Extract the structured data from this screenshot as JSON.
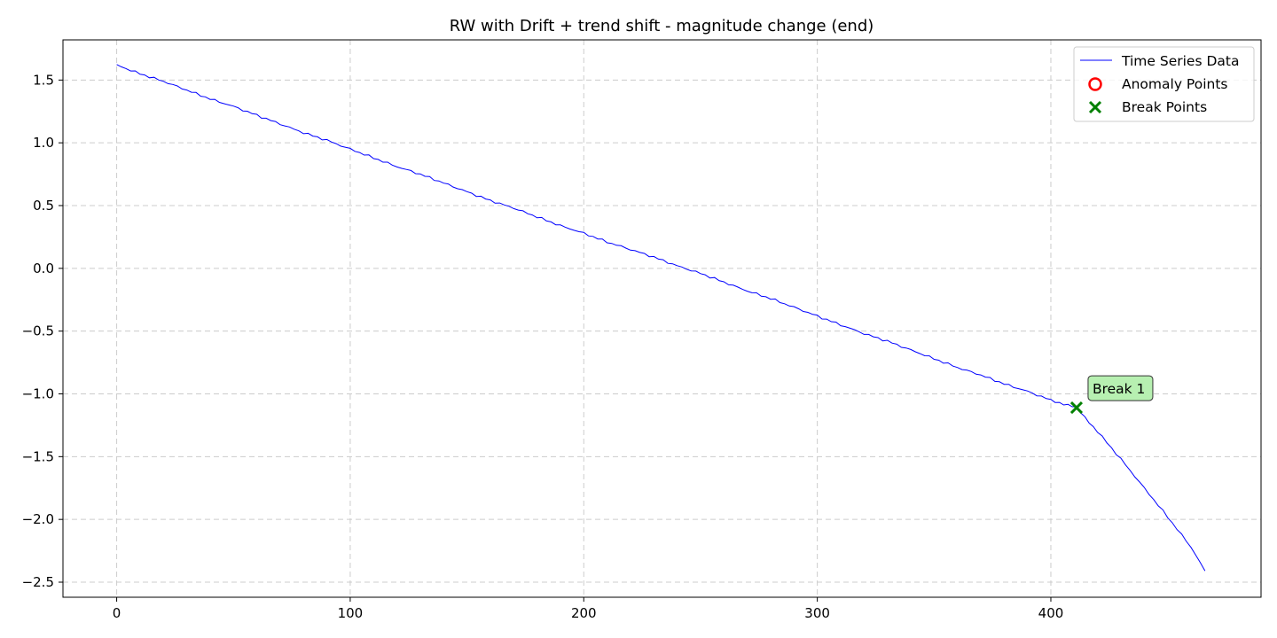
{
  "chart_data": {
    "type": "line",
    "title": "RW with Drift + trend shift - magnitude change (end)",
    "xlabel": "",
    "ylabel": "",
    "xlim": [
      -23,
      490
    ],
    "ylim": [
      -2.62,
      1.82
    ],
    "xticks": [
      0,
      100,
      200,
      300,
      400
    ],
    "xtick_labels": [
      "0",
      "100",
      "200",
      "300",
      "400"
    ],
    "yticks": [
      1.5,
      1.0,
      0.5,
      0.0,
      -0.5,
      -1.0,
      -1.5,
      -2.0,
      -2.5
    ],
    "ytick_labels": [
      "1.5",
      "1.0",
      "0.5",
      "0.0",
      "−0.5",
      "−1.0",
      "−1.5",
      "−2.0",
      "−2.5"
    ],
    "grid": true,
    "legend_position": "top-right",
    "series": [
      {
        "name": "Time Series Data",
        "color": "#0000ff",
        "x": [
          0,
          10,
          20,
          30,
          40,
          50,
          60,
          70,
          80,
          90,
          100,
          110,
          120,
          130,
          140,
          150,
          160,
          170,
          180,
          190,
          200,
          210,
          220,
          230,
          240,
          250,
          260,
          270,
          280,
          290,
          300,
          310,
          320,
          330,
          340,
          350,
          360,
          370,
          380,
          390,
          400,
          411,
          420,
          430,
          440,
          450,
          460,
          466
        ],
        "y": [
          1.62,
          1.55,
          1.49,
          1.42,
          1.35,
          1.29,
          1.22,
          1.15,
          1.08,
          1.02,
          0.95,
          0.88,
          0.81,
          0.75,
          0.68,
          0.61,
          0.54,
          0.48,
          0.41,
          0.34,
          0.28,
          0.21,
          0.15,
          0.09,
          0.02,
          -0.04,
          -0.11,
          -0.18,
          -0.24,
          -0.31,
          -0.38,
          -0.45,
          -0.52,
          -0.58,
          -0.65,
          -0.72,
          -0.79,
          -0.85,
          -0.92,
          -0.98,
          -1.05,
          -1.11,
          -1.3,
          -1.52,
          -1.75,
          -1.98,
          -2.22,
          -2.41
        ]
      },
      {
        "name": "Anomaly Points",
        "color": "#ff0000",
        "marker": "circle",
        "x": [],
        "y": []
      },
      {
        "name": "Break Points",
        "color": "#008000",
        "marker": "x",
        "x": [
          411
        ],
        "y": [
          -1.11
        ]
      }
    ],
    "annotations": [
      {
        "text": "Break 1",
        "x": 411,
        "y": -1.11
      }
    ]
  }
}
